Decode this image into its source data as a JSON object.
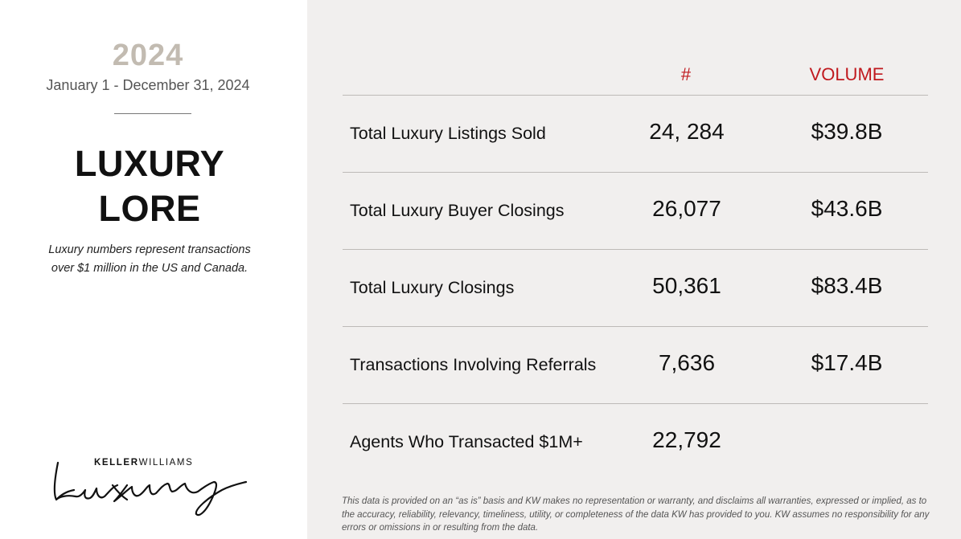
{
  "sidebar": {
    "year": "2024",
    "date_range": "January 1 - December 31, 2024",
    "title_line1": "LUXURY",
    "title_line2": "LORE",
    "note_line1": "Luxury numbers represent transactions",
    "note_line2": "over $1 million in the US and Canada.",
    "logo_prefix": "KELLER",
    "logo_suffix": "WILLIAMS",
    "logo_script": "Luxury"
  },
  "table": {
    "headers": {
      "count": "#",
      "volume": "VOLUME"
    },
    "rows": [
      {
        "label": "Total Luxury Listings Sold",
        "count": "24, 284",
        "volume": "$39.8B"
      },
      {
        "label": "Total Luxury Buyer Closings",
        "count": "26,077",
        "volume": "$43.6B"
      },
      {
        "label": "Total Luxury Closings",
        "count": "50,361",
        "volume": "$83.4B"
      },
      {
        "label": "Transactions Involving Referrals",
        "count": "7,636",
        "volume": "$17.4B"
      },
      {
        "label": "Agents Who Transacted $1M+",
        "count": "22,792",
        "volume": ""
      }
    ]
  },
  "disclaimer": "This data is provided on an “as is” basis and KW makes no representation or warranty, and disclaims all warranties, expressed or implied, as to the accuracy, reliability, relevancy, timeliness, utility, or completeness of the data KW has provided to you. KW assumes no responsibility for any errors or omissions in or resulting from the data.",
  "colors": {
    "accent": "#c0191e",
    "year": "#c2bbb1",
    "panel": "#f1efee"
  }
}
